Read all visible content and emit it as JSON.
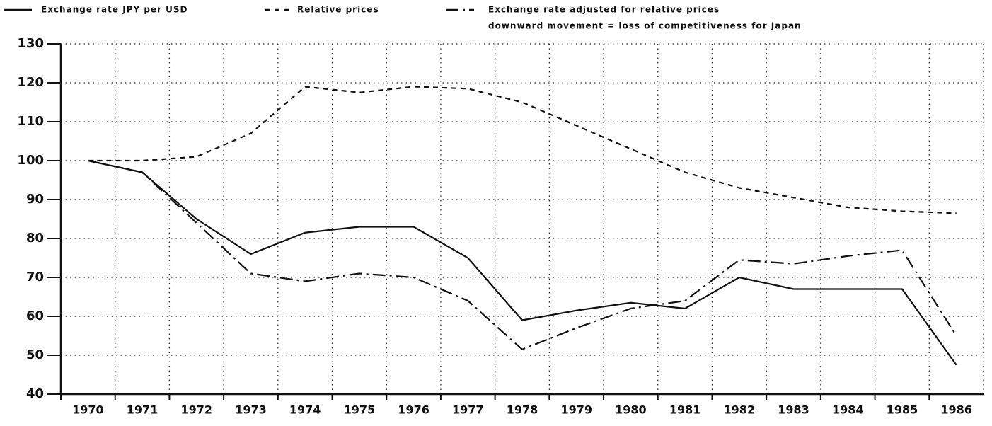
{
  "chart_data": {
    "type": "line",
    "legend_texts_note": null,
    "annotation": "downward movement = loss of competitiveness for Japan",
    "categories": [
      "1970",
      "1971",
      "1972",
      "1973",
      "1974",
      "1975",
      "1976",
      "1977",
      "1978",
      "1979",
      "1980",
      "1981",
      "1982",
      "1983",
      "1984",
      "1985",
      "1986"
    ],
    "series": [
      {
        "name": "Exchange rate JPY per USD",
        "color": "#111111",
        "dash": "solid",
        "values": [
          100,
          97,
          85,
          76,
          81.5,
          83,
          83,
          75,
          59,
          61.5,
          63.5,
          62,
          70,
          67,
          67,
          67,
          47.5
        ]
      },
      {
        "name": "Relative prices",
        "color": "#111111",
        "dash": "dashed",
        "values": [
          100,
          100,
          101,
          107,
          119,
          117.5,
          119,
          118.5,
          115,
          109,
          103,
          97,
          93,
          90.5,
          88,
          87,
          86.5
        ]
      },
      {
        "name": "Exchange rate adjusted for relative prices",
        "color": "#111111",
        "dash": "dashdot",
        "values": [
          100,
          97,
          84,
          71,
          69,
          71,
          70,
          64,
          51.5,
          57,
          62,
          64,
          74.5,
          73.5,
          75.5,
          77,
          55
        ]
      }
    ],
    "ylim": [
      40,
      130
    ],
    "yticks": [
      40,
      50,
      60,
      70,
      80,
      90,
      100,
      110,
      120,
      130
    ],
    "grid": true
  }
}
